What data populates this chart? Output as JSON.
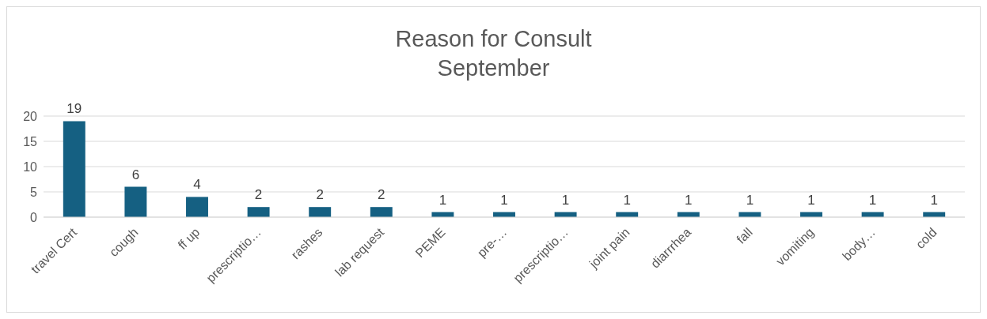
{
  "chart_data": {
    "type": "bar",
    "title": "Reason for Consult",
    "subtitle": "September",
    "categories": [
      "travel Cert",
      "cough",
      "ff up",
      "prescriptio…",
      "rashes",
      "lab request",
      "PEME",
      "pre-…",
      "prescriptio…",
      "joint pain",
      "diarrrhea",
      "fall",
      "vomiting",
      "body…",
      "cold"
    ],
    "values": [
      19,
      6,
      4,
      2,
      2,
      2,
      1,
      1,
      1,
      1,
      1,
      1,
      1,
      1,
      1
    ],
    "color": "#156082",
    "ylim": [
      0,
      20
    ],
    "yticks": [
      0,
      5,
      10,
      15,
      20
    ],
    "grid": "y",
    "data_labels": true
  }
}
